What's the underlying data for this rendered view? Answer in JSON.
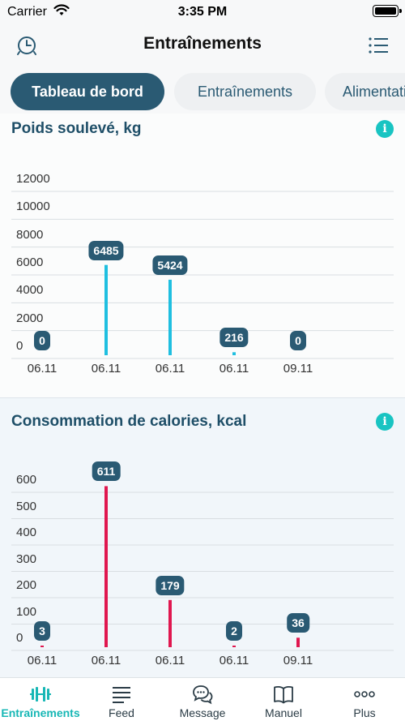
{
  "status_bar": {
    "carrier": "Carrier",
    "time": "3:35 PM"
  },
  "header": {
    "title": "Entraînements",
    "left_icon": "clock-icon",
    "right_icon": "list-icon"
  },
  "tabs": [
    {
      "label": "Tableau de bord",
      "active": true
    },
    {
      "label": "Entraînements",
      "active": false
    },
    {
      "label": "Alimentation",
      "active": false
    }
  ],
  "lifted_weight": {
    "title": "Poids soulevé, kg",
    "info": "i",
    "chart_data": {
      "type": "bar",
      "categories": [
        "06.11",
        "06.11",
        "06.11",
        "06.11",
        "09.11"
      ],
      "values": [
        0,
        6485,
        5424,
        216,
        0
      ],
      "ylim": [
        0,
        12000
      ],
      "yticks": [
        "12000",
        "10000",
        "8000",
        "6000",
        "4000",
        "2000",
        "0"
      ],
      "color": "#1fbfe0"
    }
  },
  "calories": {
    "title": "Consommation de calories, kcal",
    "info": "i",
    "chart_data": {
      "type": "bar",
      "categories": [
        "06.11",
        "06.11",
        "06.11",
        "06.11",
        "09.11"
      ],
      "values": [
        3,
        611,
        179,
        2,
        36
      ],
      "ylim": [
        0,
        600
      ],
      "yticks": [
        "600",
        "500",
        "400",
        "300",
        "200",
        "100",
        "0"
      ],
      "color": "#e0174f"
    }
  },
  "tabbar": [
    {
      "label": "Entraînements",
      "icon": "dumbbell-icon",
      "active": true
    },
    {
      "label": "Feed",
      "icon": "feed-icon",
      "active": false
    },
    {
      "label": "Message",
      "icon": "chat-icon",
      "active": false
    },
    {
      "label": "Manuel",
      "icon": "book-icon",
      "active": false
    },
    {
      "label": "Plus",
      "icon": "more-icon",
      "active": false
    }
  ]
}
